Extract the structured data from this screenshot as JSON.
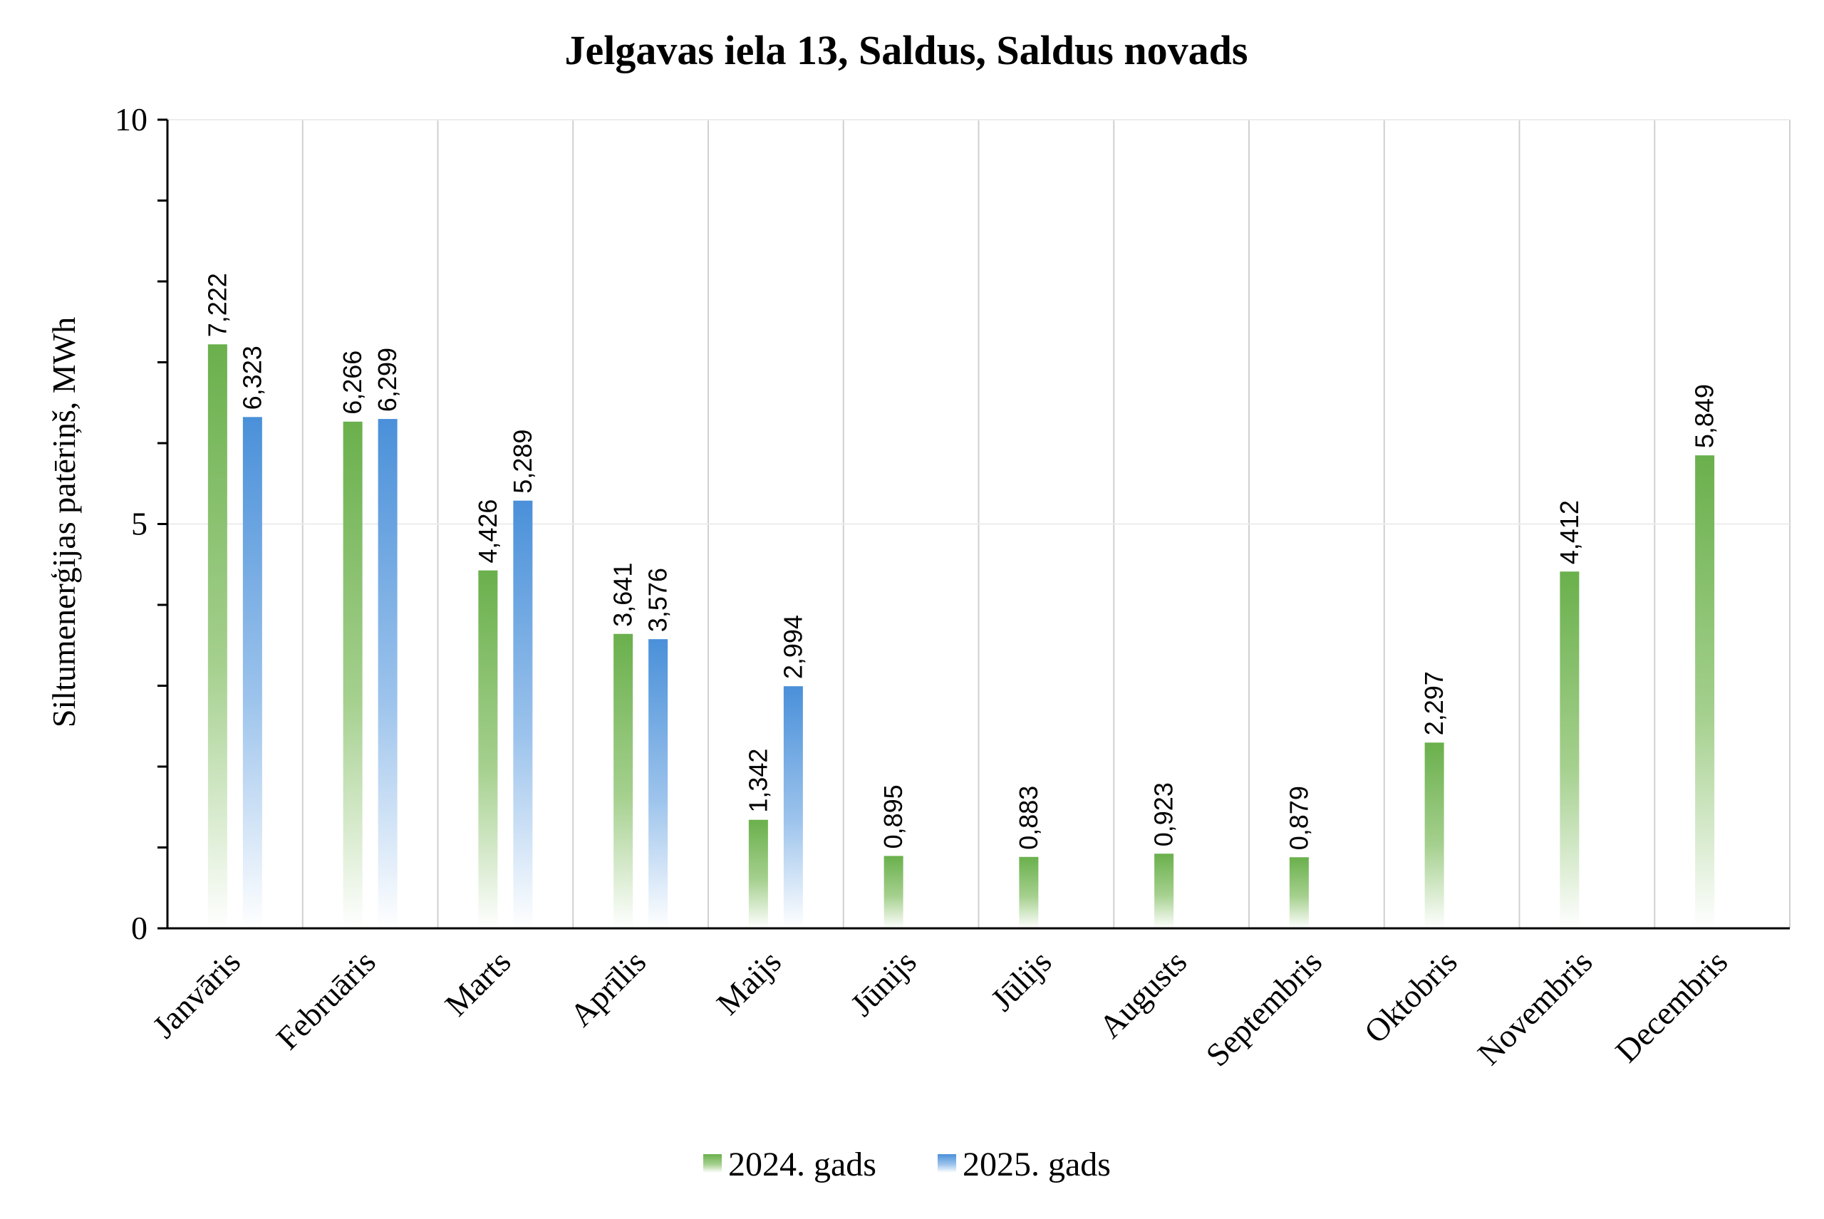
{
  "chart_data": {
    "type": "bar",
    "title": "Jelgavas iela 13, Saldus, Saldus novads",
    "ylabel": "Siltumenerģijas patēriņš, MWh",
    "xlabel": "",
    "ylim": [
      0,
      10
    ],
    "yticks": [
      0,
      5,
      10
    ],
    "grid": true,
    "legend_position": "bottom",
    "categories": [
      "Janvāris",
      "Februāris",
      "Marts",
      "Aprīlis",
      "Maijs",
      "Jūnijs",
      "Jūlijs",
      "Augusts",
      "Septembris",
      "Oktobris",
      "Novembris",
      "Decembris"
    ],
    "series": [
      {
        "name": "2024. gads",
        "color": "#6ab04c",
        "values": [
          7.222,
          6.266,
          4.426,
          3.641,
          1.342,
          0.895,
          0.883,
          0.923,
          0.879,
          2.297,
          4.412,
          5.849
        ],
        "labels": [
          "7,222",
          "6,266",
          "4,426",
          "3,641",
          "1,342",
          "0,895",
          "0,883",
          "0,923",
          "0,879",
          "2,297",
          "4,412",
          "5,849"
        ]
      },
      {
        "name": "2025. gads",
        "color": "#4a90d9",
        "values": [
          6.323,
          6.299,
          5.289,
          3.576,
          2.994,
          null,
          null,
          null,
          null,
          null,
          null,
          null
        ],
        "labels": [
          "6,323",
          "6,299",
          "5,289",
          "3,576",
          "2,994",
          null,
          null,
          null,
          null,
          null,
          null,
          null
        ]
      }
    ]
  }
}
